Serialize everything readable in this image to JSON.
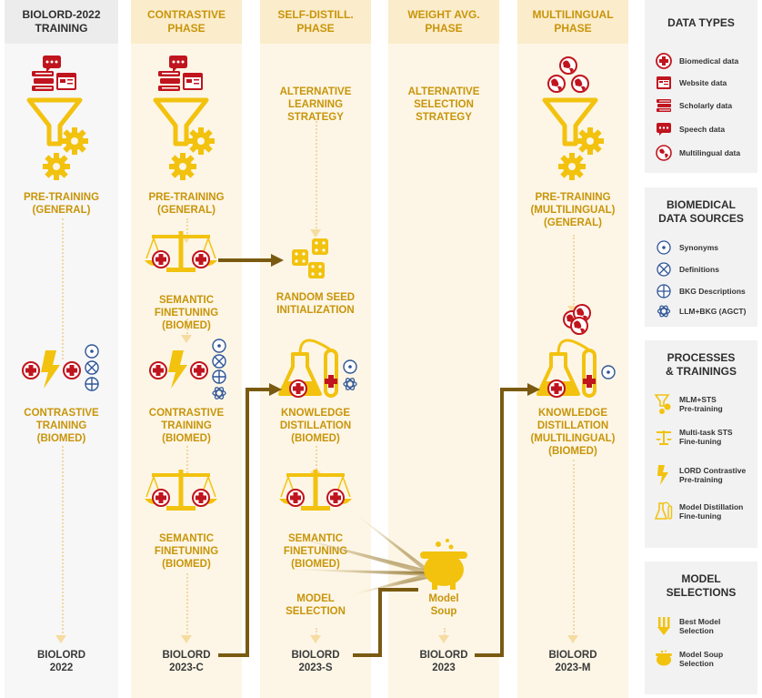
{
  "columns": [
    {
      "header_line1": "BIOLORD-2022",
      "header_line2": "TRAINING"
    },
    {
      "header_line1": "CONTRASTIVE",
      "header_line2": "PHASE"
    },
    {
      "header_line1": "SELF-DISTILL.",
      "header_line2": "PHASE"
    },
    {
      "header_line1": "WEIGHT AVG.",
      "header_line2": "PHASE"
    },
    {
      "header_line1": "MULTILINGUAL",
      "header_line2": "PHASE"
    }
  ],
  "nodes": {
    "c1_pretrain": {
      "l1": "PRE-TRAINING",
      "l2": "(GENERAL)"
    },
    "c1_contrastive": {
      "l1": "CONTRASTIVE",
      "l2": "TRAINING",
      "l3": "(BIOMED)"
    },
    "c1_model": {
      "l1": "BIOLORD",
      "l2": "2022"
    },
    "c2_pretrain": {
      "l1": "PRE-TRAINING",
      "l2": "(GENERAL)"
    },
    "c2_semantic1": {
      "l1": "SEMANTIC",
      "l2": "FINETUNING",
      "l3": "(BIOMED)"
    },
    "c2_contrastive": {
      "l1": "CONTRASTIVE",
      "l2": "TRAINING",
      "l3": "(BIOMED)"
    },
    "c2_semantic2": {
      "l1": "SEMANTIC",
      "l2": "FINETUNING",
      "l3": "(BIOMED)"
    },
    "c2_model": {
      "l1": "BIOLORD",
      "l2": "2023-C"
    },
    "c3_alt": {
      "l1": "ALTERNATIVE",
      "l2": "LEARNING",
      "l3": "STRATEGY"
    },
    "c3_seed": {
      "l1": "RANDOM SEED",
      "l2": "INITIALIZATION"
    },
    "c3_kd": {
      "l1": "KNOWLEDGE",
      "l2": "DISTILLATION",
      "l3": "(BIOMED)"
    },
    "c3_semantic": {
      "l1": "SEMANTIC",
      "l2": "FINETUNING",
      "l3": "(BIOMED)"
    },
    "c3_selection": {
      "l1": "MODEL",
      "l2": "SELECTION"
    },
    "c3_model": {
      "l1": "BIOLORD",
      "l2": "2023-S"
    },
    "c4_alt": {
      "l1": "ALTERNATIVE",
      "l2": "SELECTION",
      "l3": "STRATEGY"
    },
    "c4_soup": {
      "l1": "Model",
      "l2": "Soup"
    },
    "c4_model": {
      "l1": "BIOLORD",
      "l2": "2023"
    },
    "c5_pretrain": {
      "l1": "PRE-TRAINING",
      "l2": "(MULTILINGUAL)",
      "l3": "(GENERAL)"
    },
    "c5_kd": {
      "l1": "KNOWLEDGE",
      "l2": "DISTILLATION",
      "l3": "(MULTILINGUAL)",
      "l4": "(BIOMED)"
    },
    "c5_model": {
      "l1": "BIOLORD",
      "l2": "2023-M"
    }
  },
  "legend": {
    "data_types": {
      "title_l1": "DATA TYPES",
      "items": [
        {
          "icon": "biomedical-cross-icon",
          "label": "Biomedical data"
        },
        {
          "icon": "website-icon",
          "label": "Website data"
        },
        {
          "icon": "books-icon",
          "label": "Scholarly data"
        },
        {
          "icon": "speech-bubble-icon",
          "label": "Speech data"
        },
        {
          "icon": "globe-icon",
          "label": "Multilingual data"
        }
      ]
    },
    "sources": {
      "title_l1": "BIOMEDICAL",
      "title_l2": "DATA SOURCES",
      "items": [
        {
          "icon": "circle-dot-icon",
          "label": "Synonyms"
        },
        {
          "icon": "circle-x-icon",
          "label": "Definitions"
        },
        {
          "icon": "circle-plus-icon",
          "label": "BKG Descriptions"
        },
        {
          "icon": "llm-knot-icon",
          "label": "LLM+BKG (AGCT)"
        }
      ]
    },
    "processes": {
      "title_l1": "PROCESSES",
      "title_l2": "& TRAININGS",
      "items": [
        {
          "icon": "funnel-gears-icon",
          "l1": "MLM+STS",
          "l2": "Pre-training"
        },
        {
          "icon": "scale-icon",
          "l1": "Multi-task STS",
          "l2": "Fine-tuning"
        },
        {
          "icon": "lightning-icon",
          "l1": "LORD Contrastive",
          "l2": "Pre-training"
        },
        {
          "icon": "flask-icon",
          "l1": "Model Distillation",
          "l2": "Fine-tuning"
        }
      ]
    },
    "selections": {
      "title_l1": "MODEL",
      "title_l2": "SELECTIONS",
      "items": [
        {
          "icon": "best-model-arrows-icon",
          "l1": "Best Model",
          "l2": "Selection"
        },
        {
          "icon": "cauldron-icon",
          "l1": "Model Soup",
          "l2": "Selection"
        }
      ]
    }
  },
  "colors": {
    "gold": "#f2c20f",
    "gold_text": "#c8950a",
    "red": "#c0141e",
    "blue": "#2f5597",
    "brown": "#7a5a10"
  }
}
